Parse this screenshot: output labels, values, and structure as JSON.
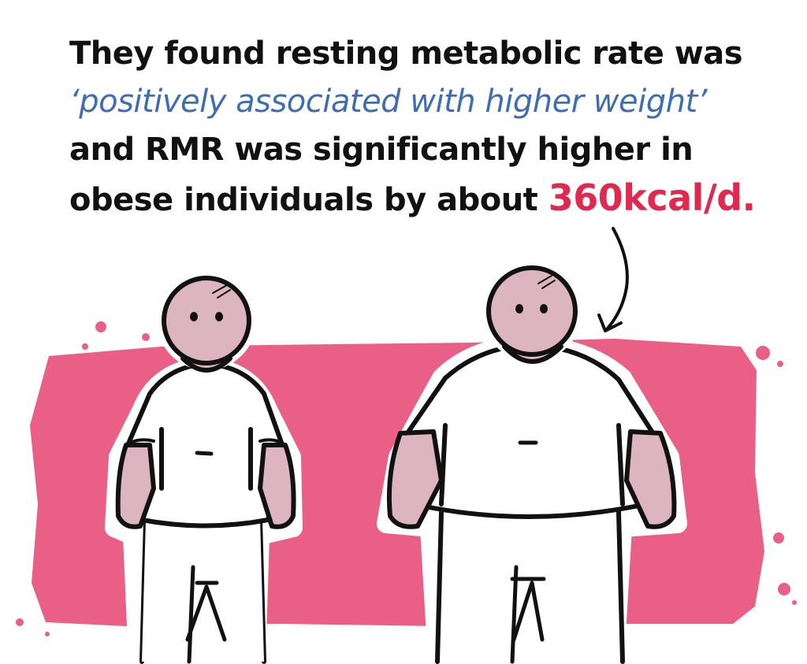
{
  "caption": {
    "line1": "They found resting metabolic rate was",
    "line2": "‘positively associated with higher weight’",
    "line3": "and RMR was significantly higher in",
    "line4_text": "obese individuals by about",
    "line4_highlight": "360kcal/d."
  },
  "colors": {
    "text": "#111111",
    "quote": "#3f6db3",
    "highlight": "#e0294f",
    "background_splash": "#ea5f86",
    "skin": "#dcb5c0",
    "outline": "#111111"
  },
  "illustration": {
    "figures": [
      "thin-figure",
      "obese-figure"
    ],
    "arrow": "curved-arrow-pointing-to-obese-figure"
  }
}
